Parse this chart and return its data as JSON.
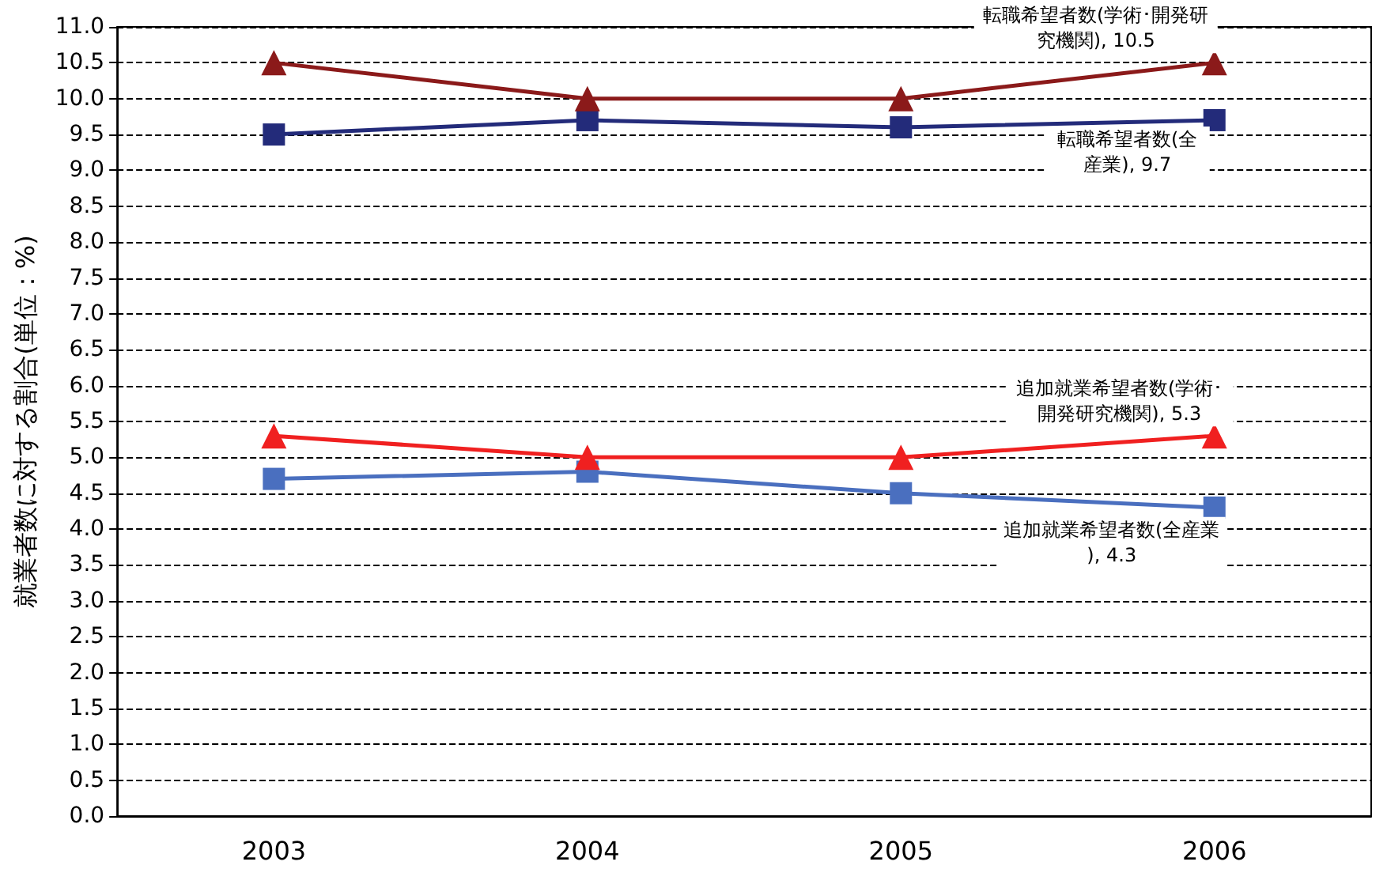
{
  "chart_data": {
    "type": "line",
    "ylabel": "就業者数に対する割合(単位：%)",
    "categories": [
      "2003",
      "2004",
      "2005",
      "2006"
    ],
    "series": [
      {
        "color": "#8b1a1a",
        "marker": "triangle",
        "values": [
          10.5,
          10.0,
          10.0,
          10.5
        ]
      },
      {
        "color": "#232b7a",
        "marker": "square",
        "values": [
          9.5,
          9.7,
          9.6,
          9.7
        ]
      },
      {
        "color": "#f02020",
        "marker": "triangle",
        "values": [
          5.3,
          5.0,
          5.0,
          5.3
        ]
      },
      {
        "color": "#4a6fbf",
        "marker": "square",
        "values": [
          4.7,
          4.8,
          4.5,
          4.3
        ]
      }
    ],
    "annotations": [
      {
        "text": "転職希望者数(学術･開発研究機関), 10.5",
        "x": "2006",
        "y": 10.5
      },
      {
        "text": "転職希望者数(全産業), 9.7",
        "x": "2006",
        "y": 9.7
      },
      {
        "text": "追加就業希望者数(学術･開発研究機関), 5.3",
        "x": "2006",
        "y": 5.3
      },
      {
        "text": "追加就業希望者数(全産業), 4.3",
        "x": "2006",
        "y": 4.3
      }
    ],
    "ylim": [
      0,
      11
    ],
    "yticks": [
      {
        "value": 0,
        "label": "0.0"
      },
      {
        "value": 0.5,
        "label": "0.5"
      },
      {
        "value": 1,
        "label": "1.0"
      },
      {
        "value": 1.5,
        "label": "1.5"
      },
      {
        "value": 2,
        "label": "2.0"
      },
      {
        "value": 2.5,
        "label": "2.5"
      },
      {
        "value": 3,
        "label": "3.0"
      },
      {
        "value": 3.5,
        "label": "3.5"
      },
      {
        "value": 4,
        "label": "4.0"
      },
      {
        "value": 4.5,
        "label": "4.5"
      },
      {
        "value": 5,
        "label": "5.0"
      },
      {
        "value": 5.5,
        "label": "5.5"
      },
      {
        "value": 6,
        "label": "6.0"
      },
      {
        "value": 6.5,
        "label": "6.5"
      },
      {
        "value": 7,
        "label": "7.0"
      },
      {
        "value": 7.5,
        "label": "7.5"
      },
      {
        "value": 8,
        "label": "8.0"
      },
      {
        "value": 8.5,
        "label": "8.5"
      },
      {
        "value": 9,
        "label": "9.0"
      },
      {
        "value": 9.5,
        "label": "9.5"
      },
      {
        "value": 10,
        "label": "10.0"
      },
      {
        "value": 10.5,
        "label": "10.5"
      },
      {
        "value": 11,
        "label": "11.0"
      }
    ],
    "grid": "y",
    "line_style": "solid"
  }
}
